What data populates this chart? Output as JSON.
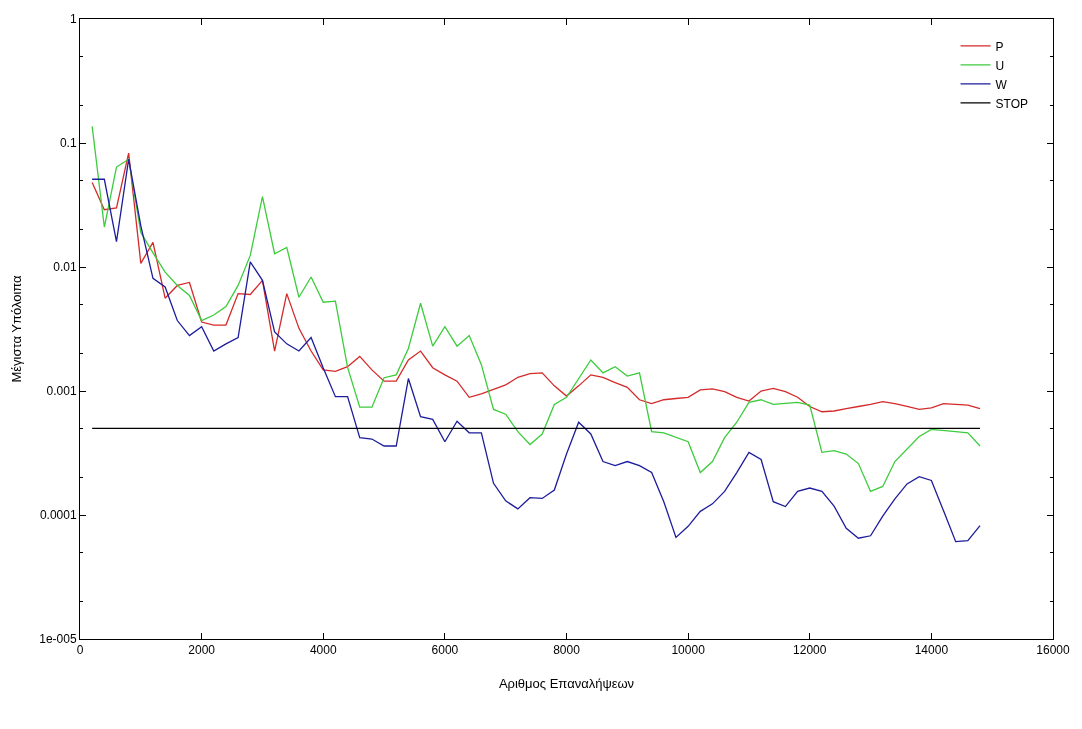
{
  "chart_data": {
    "type": "line",
    "xlabel": "Αριθμος Επαναλήψεων",
    "ylabel": "Μέγιστα Υπόλοιπα",
    "log": "y",
    "grid": false,
    "legend": "top right",
    "marker": "none",
    "line_style": "solid",
    "xlim": [
      0,
      16000
    ],
    "xticks": [
      0,
      2000,
      4000,
      6000,
      8000,
      10000,
      12000,
      14000,
      16000
    ],
    "ylim": [
      1e-05,
      1
    ],
    "yticks": [
      {
        "value": 1e-05,
        "label": "1e-005"
      },
      0.0001,
      0.001,
      0.01,
      0.1,
      1
    ],
    "x": [
      200,
      400,
      600,
      800,
      1000,
      1200,
      1400,
      1600,
      1800,
      2000,
      2200,
      2400,
      2600,
      2800,
      3000,
      3200,
      3400,
      3600,
      3800,
      4000,
      4200,
      4400,
      4600,
      4800,
      5000,
      5200,
      5400,
      5600,
      5800,
      6000,
      6200,
      6400,
      6600,
      6800,
      7000,
      7200,
      7400,
      7600,
      7800,
      8000,
      8200,
      8400,
      8600,
      8800,
      9000,
      9200,
      9400,
      9600,
      9800,
      10000,
      10200,
      10400,
      10600,
      10800,
      11000,
      11200,
      11400,
      11600,
      11800,
      12000,
      12200,
      12400,
      12600,
      12800,
      13000,
      13200,
      13400,
      13600,
      13800,
      14000,
      14200,
      14400,
      14600,
      14800
    ],
    "series": [
      {
        "name": "P",
        "color": "#d42a2a",
        "values": [
          0.048,
          0.029,
          0.03,
          0.083,
          0.0107,
          0.0158,
          0.0056,
          0.0071,
          0.0075,
          0.0036,
          0.0034,
          0.0034,
          0.0061,
          0.006,
          0.0078,
          0.0021,
          0.0061,
          0.0032,
          0.0021,
          0.00148,
          0.00144,
          0.00157,
          0.0019,
          0.00148,
          0.0012,
          0.0012,
          0.00178,
          0.0021,
          0.00154,
          0.00135,
          0.0012,
          0.00089,
          0.00095,
          0.00103,
          0.00112,
          0.00129,
          0.00138,
          0.0014,
          0.0011,
          0.00091,
          0.0011,
          0.00135,
          0.00129,
          0.00117,
          0.00107,
          0.00085,
          0.00079,
          0.00085,
          0.00087,
          0.00089,
          0.00102,
          0.00104,
          0.00099,
          0.00089,
          0.00083,
          0.001,
          0.00105,
          0.00099,
          0.00089,
          0.00075,
          0.00068,
          0.00069,
          0.00072,
          0.00075,
          0.00078,
          0.00082,
          0.00079,
          0.00075,
          0.00071,
          0.00073,
          0.00079,
          0.00078,
          0.00077,
          0.00072
        ]
      },
      {
        "name": "U",
        "color": "#3ccc3c",
        "x": [
          200,
          400,
          600,
          800,
          1000,
          1200,
          1400,
          1600,
          1800,
          2000,
          2200,
          2400,
          2600,
          2800,
          3000,
          3200,
          3400,
          3600,
          3800,
          4000,
          4200,
          4400,
          4600,
          4800,
          5000,
          5200,
          5400,
          5600,
          5800,
          6000,
          6200,
          6400,
          6600,
          6800,
          7000,
          7200,
          7400,
          7600,
          7800,
          8000,
          8400,
          8600,
          8800,
          9000,
          9200,
          9400,
          9600,
          10000,
          10200,
          10400,
          10600,
          10800,
          11000,
          11200,
          11400,
          11800,
          12000,
          12200,
          12400,
          12600,
          12800,
          13000,
          13200,
          13400,
          13800,
          14000,
          14400,
          14600,
          14800
        ],
        "values": [
          0.136,
          0.021,
          0.064,
          0.074,
          0.019,
          0.013,
          0.0091,
          0.0071,
          0.0059,
          0.0037,
          0.0041,
          0.0048,
          0.0071,
          0.0124,
          0.037,
          0.0128,
          0.0144,
          0.0057,
          0.0083,
          0.0052,
          0.0053,
          0.00155,
          0.00074,
          0.00074,
          0.00128,
          0.00135,
          0.0022,
          0.0051,
          0.0023,
          0.0033,
          0.0023,
          0.0028,
          0.00163,
          0.00071,
          0.00065,
          0.00047,
          0.00037,
          0.00045,
          0.00078,
          0.00089,
          0.00178,
          0.0014,
          0.00157,
          0.00132,
          0.0014,
          0.00047,
          0.00046,
          0.00039,
          0.00022,
          0.00027,
          0.00042,
          0.00056,
          0.00081,
          0.00085,
          0.00078,
          0.00081,
          0.00077,
          0.00032,
          0.00033,
          0.00031,
          0.00026,
          0.000155,
          0.00017,
          0.00027,
          0.00043,
          0.00049,
          0.00047,
          0.00046,
          0.00036
        ]
      },
      {
        "name": "W",
        "color": "#1c1c9c",
        "values": [
          0.051,
          0.051,
          0.016,
          0.074,
          0.0215,
          0.0081,
          0.0069,
          0.0037,
          0.0028,
          0.0033,
          0.0021,
          0.0024,
          0.0027,
          0.011,
          0.0078,
          0.003,
          0.0024,
          0.0021,
          0.0027,
          0.00153,
          0.0009,
          0.0009,
          0.00042,
          0.00041,
          0.00036,
          0.00036,
          0.00126,
          0.00062,
          0.00059,
          0.00039,
          0.00057,
          0.00046,
          0.00046,
          0.00018,
          0.00013,
          0.000112,
          0.000138,
          0.000136,
          0.000159,
          0.00031,
          0.00056,
          0.00045,
          0.00027,
          0.00025,
          0.00027,
          0.00025,
          0.00022,
          0.000128,
          6.6e-05,
          8.1e-05,
          0.000107,
          0.000123,
          0.000155,
          0.00022,
          0.00032,
          0.00028,
          0.000128,
          0.000117,
          0.000155,
          0.000165,
          0.000155,
          0.000118,
          7.8e-05,
          6.5e-05,
          6.8e-05,
          9.8e-05,
          0.000135,
          0.000178,
          0.000204,
          0.00019,
          0.000108,
          6.1e-05,
          6.2e-05,
          8.2e-05
        ]
      },
      {
        "name": "STOP",
        "color": "#000000",
        "x": [
          200,
          14800
        ],
        "values": [
          0.0005,
          0.0005
        ]
      }
    ]
  }
}
